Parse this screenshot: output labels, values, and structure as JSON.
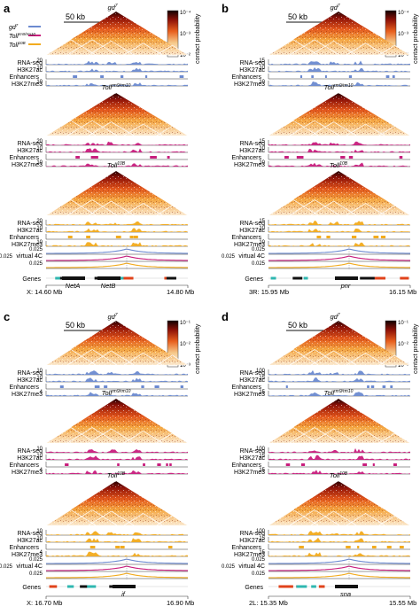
{
  "colors": {
    "gd7": "#6c8ad0",
    "Tollrm9rm10": "#c81e7d",
    "Toll10B": "#f2ab1e",
    "heat_low": "#fbe6c5",
    "heat_high": "#1a0202",
    "track_axis": "#333333",
    "insulator_lines": "#ffffff",
    "gene": "#111111",
    "gene_alt": "#2fb7b0",
    "gene_red": "#e0431b"
  },
  "legend": {
    "items": [
      {
        "label": "gd",
        "sup": "7",
        "color": "#6c8ad0"
      },
      {
        "label": "Toll",
        "sup": "rm9/rm10",
        "color": "#c81e7d"
      },
      {
        "label": "Toll",
        "sup": "10B",
        "color": "#f2ab1e"
      }
    ]
  },
  "colorbar": {
    "label": "contact probability",
    "ticks_ab": [
      "10⁻⁴",
      "10⁻³",
      "10⁻²",
      "10⁻³"
    ],
    "ticks_cd": [
      "10⁻¹",
      "10⁻²",
      "10⁻³"
    ]
  },
  "track_labels": {
    "rna": "RNA-seq",
    "h3k27ac": "H3K27ac",
    "enhancers": "Enhancers",
    "h3k27me3": "H3K27me3",
    "virtual4c": "virtual 4C",
    "genes": "Genes"
  },
  "panels": [
    {
      "letter": "a",
      "scale": "50 kb",
      "genotypes": [
        "gd",
        "Toll",
        "Toll"
      ],
      "genotype_sups": [
        "7",
        "rm9/rm10",
        "10B"
      ],
      "ticks": {
        "rna": "20",
        "ac": "10",
        "me3": "10",
        "v4c": [
          "0.025",
          "0.025",
          "0.025"
        ]
      },
      "coord_left": "X: 14.60 Mb",
      "coord_right": "14.80 Mb",
      "genes": [
        "NetA",
        "NetB"
      ]
    },
    {
      "letter": "b",
      "scale": "50 kb",
      "genotypes": [
        "gd",
        "Toll",
        "Toll"
      ],
      "genotype_sups": [
        "7",
        "rm9/rm10",
        "10B"
      ],
      "ticks": {
        "rna": "15",
        "ac": "10",
        "me3": "10",
        "v4c": [
          "0.025",
          "0.025",
          "0.025"
        ]
      },
      "coord_left": "3R: 15.95 Mb",
      "coord_right": "16.15 Mb",
      "genes": [
        "pnr"
      ]
    },
    {
      "letter": "c",
      "scale": "50 kb",
      "genotypes": [
        "gd",
        "Toll",
        "Toll"
      ],
      "genotype_sups": [
        "7",
        "rm9/rm10",
        "10B"
      ],
      "ticks": {
        "rna": "10",
        "ac": "10",
        "me3": "4",
        "v4c": [
          "0.025",
          "0.025",
          "0.025"
        ]
      },
      "coord_left": "X: 16.70 Mb",
      "coord_right": "16.90 Mb",
      "genes": [
        "if"
      ]
    },
    {
      "letter": "d",
      "scale": "50 kb",
      "genotypes": [
        "gd",
        "Toll",
        "Toll"
      ],
      "genotype_sups": [
        "7",
        "rm9/rm10",
        "10B"
      ],
      "ticks": {
        "rna": "100",
        "ac": "15",
        "me3": "15",
        "v4c": [
          "0.025",
          "0.025",
          "0.025"
        ]
      },
      "coord_left": "2L: 15.35 Mb",
      "coord_right": "15.55 Mb",
      "genes": [
        "sna"
      ]
    }
  ]
}
